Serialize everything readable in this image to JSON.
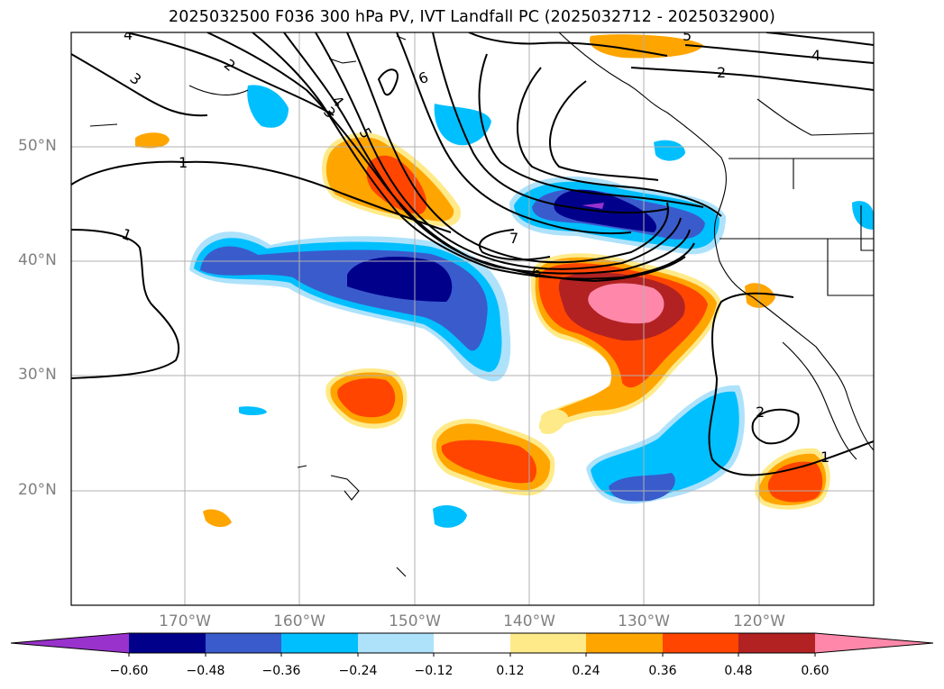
{
  "title": "2025032500 F036 300 hPa PV, IVT Landfall PC (2025032712 - 2025032900)",
  "map": {
    "lon_range": [
      -180,
      -110
    ],
    "lat_range": [
      10,
      60
    ],
    "lat_labels": [
      "50°N",
      "40°N",
      "30°N",
      "20°N"
    ],
    "lon_labels": [
      "170°W",
      "160°W",
      "150°W",
      "140°W",
      "130°W",
      "120°W"
    ],
    "grid": true,
    "pv_contour_labels": [
      "4",
      "3",
      "2",
      "1",
      "1",
      "3",
      "4",
      "5",
      "6",
      "7",
      "6",
      "5",
      "2",
      "4",
      "2",
      "1"
    ]
  },
  "colorbar": {
    "ticks": [
      "−0.60",
      "−0.48",
      "−0.36",
      "−0.24",
      "−0.12",
      "0.12",
      "0.24",
      "0.36",
      "0.48",
      "0.60"
    ],
    "colors": [
      "#9932cc",
      "#00008b",
      "#3a5bcc",
      "#00bfff",
      "#aee2fb",
      "#ffffff",
      "#ffea8a",
      "#ffa500",
      "#ff4500",
      "#b22222",
      "#ff88aa"
    ],
    "extend": "both"
  },
  "colors": {
    "grid": "#b0b0b0",
    "coast": "#000000",
    "contour": "#000000"
  }
}
